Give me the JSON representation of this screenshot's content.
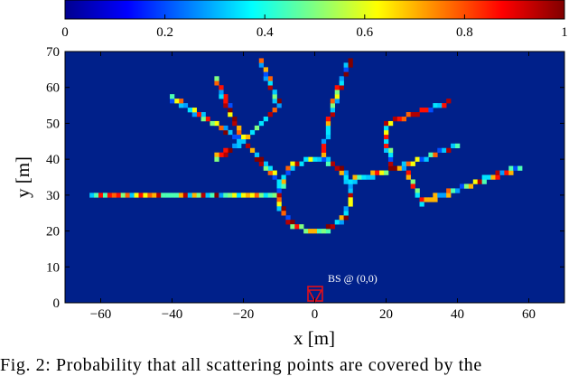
{
  "caption": "Fig. 2: Probability that all scattering points are covered by the",
  "colors": {
    "background": "#00208a",
    "frame": "#000000",
    "bs_marker": "#e0101a"
  },
  "colorbar": {
    "colormap": "jet",
    "ticks": [
      "0",
      "0.2",
      "0.4",
      "0.6",
      "0.8",
      "1"
    ],
    "tick_values": [
      0,
      0.2,
      0.4,
      0.6,
      0.8,
      1
    ],
    "range": [
      0,
      1
    ]
  },
  "chart_data": {
    "type": "heatmap",
    "title": "",
    "xlabel": "x [m]",
    "ylabel": "y [m]",
    "xlim": [
      -70,
      70
    ],
    "ylim": [
      0,
      70
    ],
    "xticks": [
      "−60",
      "−40",
      "−20",
      "0",
      "20",
      "40",
      "60"
    ],
    "xtick_values": [
      -60,
      -40,
      -20,
      0,
      20,
      40,
      60
    ],
    "yticks": [
      "0",
      "10",
      "20",
      "30",
      "40",
      "50",
      "60",
      "70"
    ],
    "ytick_values": [
      0,
      10,
      20,
      30,
      40,
      50,
      60,
      70
    ],
    "grid": false,
    "annotation": {
      "text": "BS @ (0,0)",
      "x": 0,
      "y": 0
    },
    "paths": [
      {
        "name": "left-road",
        "points": [
          [
            -63,
            30
          ],
          [
            -10,
            30
          ]
        ]
      },
      {
        "name": "roundabout",
        "center": [
          0,
          30
        ],
        "radius": 10
      },
      {
        "name": "branch-upper-left-a",
        "points": [
          [
            -9,
            33
          ],
          [
            -20,
            45
          ],
          [
            -40,
            57
          ]
        ]
      },
      {
        "name": "branch-upper-left-b",
        "points": [
          [
            -20,
            45
          ],
          [
            -28,
            40
          ]
        ]
      },
      {
        "name": "branch-upper-left-c",
        "points": [
          [
            -20,
            45
          ],
          [
            -28,
            63
          ]
        ]
      },
      {
        "name": "branch-upper-left-d",
        "points": [
          [
            -20,
            45
          ],
          [
            -10,
            55
          ],
          [
            -15,
            67
          ]
        ]
      },
      {
        "name": "branch-up",
        "points": [
          [
            2,
            40
          ],
          [
            5,
            55
          ],
          [
            10,
            68
          ]
        ]
      },
      {
        "name": "branch-right-a",
        "points": [
          [
            10,
            34
          ],
          [
            25,
            38
          ],
          [
            40,
            44
          ]
        ]
      },
      {
        "name": "branch-right-b",
        "points": [
          [
            21,
            38
          ],
          [
            20,
            50
          ],
          [
            38,
            56
          ]
        ]
      },
      {
        "name": "branch-right-c",
        "points": [
          [
            25,
            38
          ],
          [
            30,
            28
          ],
          [
            58,
            38
          ]
        ]
      }
    ]
  }
}
